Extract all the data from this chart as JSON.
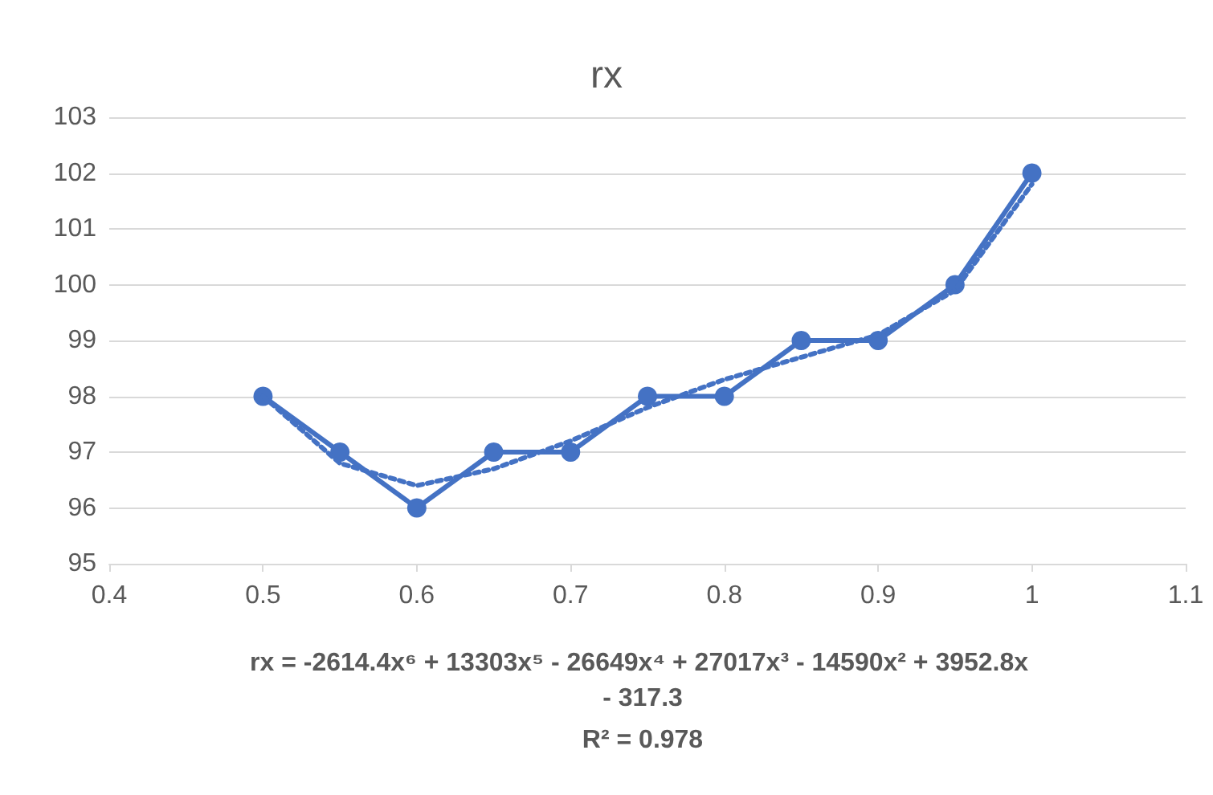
{
  "chart_data": {
    "type": "line",
    "title": "rx",
    "x": [
      0.5,
      0.55,
      0.6,
      0.65,
      0.7,
      0.75,
      0.8,
      0.85,
      0.9,
      0.95,
      1
    ],
    "series": [
      {
        "color": "#4472c4",
        "values": [
          98,
          97,
          96,
          97,
          97,
          98,
          98,
          99,
          99,
          100,
          102
        ],
        "marker": "circle",
        "line_style": "solid"
      },
      {
        "color": "#4472c4",
        "values": [
          98,
          96.8,
          96.4,
          96.7,
          97.2,
          97.8,
          98.3,
          98.7,
          99.1,
          99.9,
          101.8
        ],
        "marker": "none",
        "line_style": "dotted"
      }
    ],
    "xlim": [
      0.4,
      1.1
    ],
    "xticks": [
      0.4,
      0.5,
      0.6,
      0.7,
      0.8,
      0.9,
      1,
      1.1
    ],
    "ylim": [
      95,
      103
    ],
    "yticks": [
      95,
      96,
      97,
      98,
      99,
      100,
      101,
      102,
      103
    ],
    "grid": "y",
    "annotations": [
      "rx = -2614.4x⁶ + 13303x⁵ - 26649x⁴ + 27017x³ - 14590x² + 3952.8x - 317.3",
      "R² = 0.978"
    ]
  }
}
